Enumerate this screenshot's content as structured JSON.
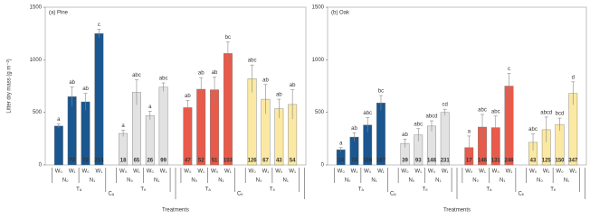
{
  "chart_data": [
    {
      "type": "bar",
      "title": "(a) Pine",
      "ylabel": "Litter dry mass (g m⁻²)",
      "xlabel": "Treatments",
      "ylim": [
        0,
        1500
      ],
      "yticks": [
        0,
        500,
        1000,
        1500
      ],
      "blocks": [
        "Cₐ",
        "Cₑ"
      ],
      "groups": [
        {
          "label": "Tₐ",
          "color": "#1a568f",
          "categories": [
            "W₀",
            "W₁",
            "W₀",
            "W₁"
          ],
          "subgroups": [
            "N₀",
            "N₁"
          ],
          "values": [
            370,
            650,
            600,
            1250
          ],
          "errors": [
            20,
            90,
            80,
            40
          ],
          "letters": [
            "a",
            "ab",
            "ab",
            "c"
          ],
          "n": [
            null,
            73,
            72,
            214
          ]
        },
        {
          "label": "Tₑ",
          "color": "#e2e2e2",
          "categories": [
            "W₀",
            "W₁",
            "W₀",
            "W₁"
          ],
          "subgroups": [
            "N₀",
            "N₁"
          ],
          "values": [
            300,
            690,
            470,
            740
          ],
          "errors": [
            30,
            120,
            40,
            40
          ],
          "letters": [
            "a",
            "abc",
            "a",
            "abc"
          ],
          "n": [
            18,
            65,
            26,
            99
          ]
        },
        {
          "label": "Tₐ",
          "color": "#e85a4a",
          "categories": [
            "W₀",
            "W₁",
            "W₀",
            "W₁"
          ],
          "subgroups": [
            "N₀",
            "N₁"
          ],
          "values": [
            545,
            720,
            715,
            1060
          ],
          "errors": [
            70,
            110,
            120,
            110
          ],
          "letters": [
            "ab",
            "ab",
            "ab",
            "bc"
          ],
          "n": [
            47,
            52,
            51,
            103
          ]
        },
        {
          "label": "Tₑ",
          "color": "#fbe9a3",
          "categories": [
            "W₀",
            "W₁",
            "W₀",
            "W₁"
          ],
          "subgroups": [
            "N₀",
            "N₁"
          ],
          "values": [
            820,
            625,
            535,
            575
          ],
          "errors": [
            130,
            140,
            90,
            140
          ],
          "letters": [
            "abc",
            "ab",
            "ab",
            "ab"
          ],
          "n": [
            126,
            67,
            43,
            54
          ]
        }
      ]
    },
    {
      "type": "bar",
      "title": "(b) Oak",
      "xlabel": "Treatments",
      "ylim": [
        0,
        1500
      ],
      "yticks": [
        0,
        500,
        1000,
        1500
      ],
      "blocks": [
        "Cₐ",
        "Cₑ"
      ],
      "groups": [
        {
          "label": "Tₐ",
          "color": "#1a568f",
          "categories": [
            "W₀",
            "W₁",
            "W₀",
            "W₁"
          ],
          "subgroups": [
            "N₀",
            "N₁"
          ],
          "values": [
            145,
            265,
            380,
            590
          ],
          "errors": [
            20,
            40,
            70,
            70
          ],
          "letters": [
            "a",
            "ab",
            "abc",
            "bc"
          ],
          "n": [
            14,
            74,
            108,
            187
          ]
        },
        {
          "label": "Tₑ",
          "color": "#e2e2e2",
          "categories": [
            "W₀",
            "W₁",
            "W₀",
            "W₁"
          ],
          "subgroups": [
            "N₀",
            "N₁"
          ],
          "values": [
            205,
            285,
            370,
            500
          ],
          "errors": [
            40,
            60,
            50,
            30
          ],
          "letters": [
            "ab",
            "abc",
            "abcd",
            "cd"
          ],
          "n": [
            39,
            93,
            146,
            231
          ]
        },
        {
          "label": "Tₐ",
          "color": "#e85a4a",
          "categories": [
            "W₀",
            "W₁",
            "W₀",
            "W₁"
          ],
          "subgroups": [
            "N₀",
            "N₁"
          ],
          "values": [
            165,
            360,
            355,
            750
          ],
          "errors": [
            110,
            120,
            110,
            120
          ],
          "letters": [
            "a",
            "abc",
            "abc",
            "c"
          ],
          "n": [
            17,
            146,
            131,
            246
          ]
        },
        {
          "label": "Tₑ",
          "color": "#fbe9a3",
          "categories": [
            "W₀",
            "W₁",
            "W₀",
            "W₁"
          ],
          "subgroups": [
            "N₀",
            "N₁"
          ],
          "values": [
            215,
            335,
            385,
            680
          ],
          "errors": [
            80,
            120,
            60,
            110
          ],
          "letters": [
            "abc",
            "abcd",
            "bcd",
            "d"
          ],
          "n": [
            43,
            125,
            150,
            347
          ]
        }
      ]
    }
  ]
}
